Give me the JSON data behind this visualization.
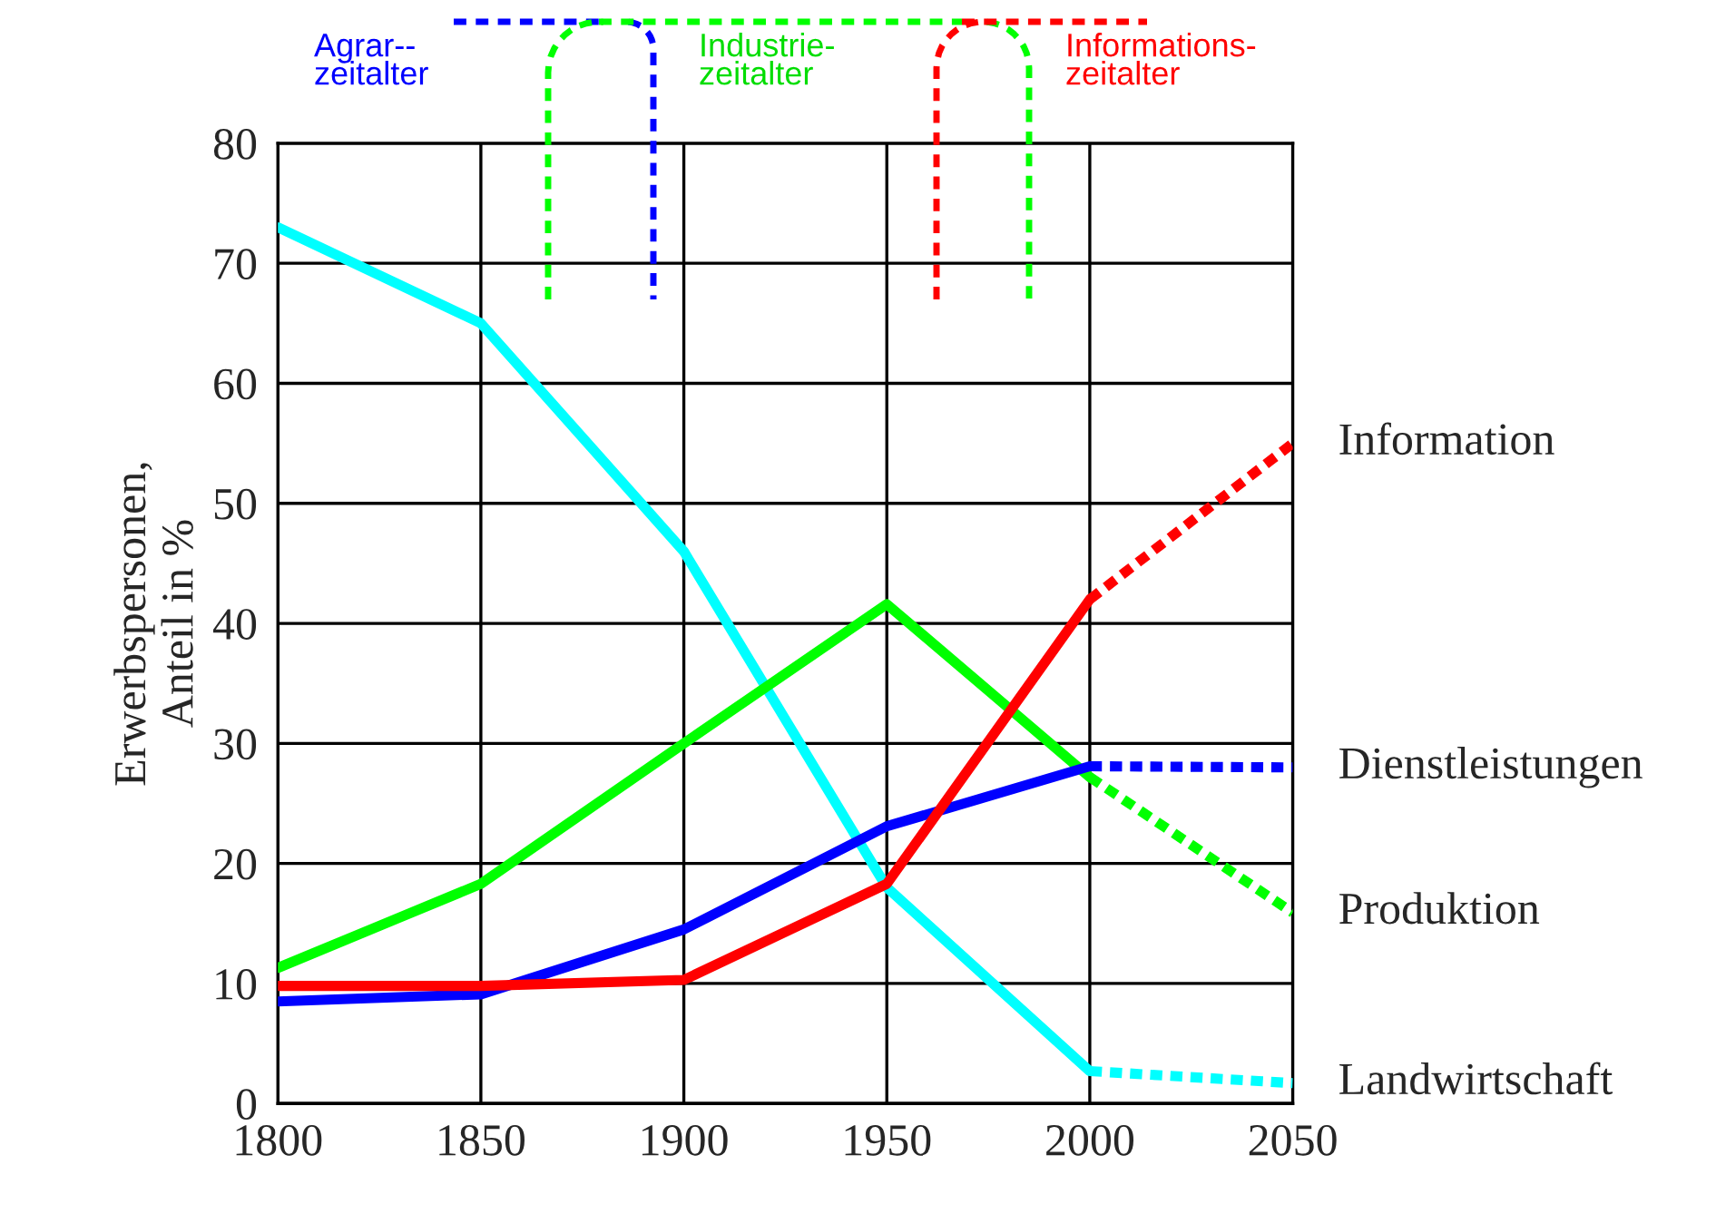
{
  "chart_data": {
    "type": "line",
    "ylabel": "Erwerbspersonen,\nAnteil in %",
    "x": [
      1800,
      1850,
      1900,
      1950,
      2000,
      2050
    ],
    "series": [
      {
        "color": "#00ffff",
        "line_style": "solid",
        "values": [
          73,
          65,
          46,
          18,
          2.7,
          null
        ]
      },
      {
        "name": "Landwirtschaft",
        "color": "#00ffff",
        "line_style": "dashed",
        "values": [
          null,
          null,
          null,
          null,
          2.7,
          1.7
        ]
      },
      {
        "color": "#00ff00",
        "line_style": "solid",
        "values": [
          11.3,
          18.3,
          30,
          41.6,
          27.2,
          null
        ]
      },
      {
        "name": "Produktion",
        "color": "#00ff00",
        "line_style": "dashed",
        "values": [
          null,
          null,
          null,
          null,
          27.2,
          15.9
        ]
      },
      {
        "color": "#0000ff",
        "line_style": "solid",
        "values": [
          8.5,
          9.1,
          14.5,
          23.1,
          28.1,
          null
        ]
      },
      {
        "name": "Dienstleistungen",
        "color": "#0000ff",
        "line_style": "dashed",
        "values": [
          null,
          null,
          null,
          null,
          28.1,
          28
        ]
      },
      {
        "color": "#ff0000",
        "line_style": "solid",
        "values": [
          9.8,
          9.8,
          10.3,
          18.3,
          42,
          null
        ]
      },
      {
        "name": "Information",
        "color": "#ff0000",
        "line_style": "dashed",
        "values": [
          null,
          null,
          null,
          null,
          42,
          55
        ]
      }
    ],
    "annotations": [
      "Agrar--\nzeitalter",
      "Industrie-\nzeitalter",
      "Informations-\nzeitalter"
    ],
    "xlim": [
      1800,
      2050
    ],
    "ylim": [
      0,
      80
    ],
    "xticks": [
      1800,
      1850,
      1900,
      1950,
      2000,
      2050
    ],
    "yticks": [
      0,
      10,
      20,
      30,
      40,
      50,
      60,
      70,
      80
    ],
    "grid": true,
    "legend": false,
    "marker": "none"
  }
}
